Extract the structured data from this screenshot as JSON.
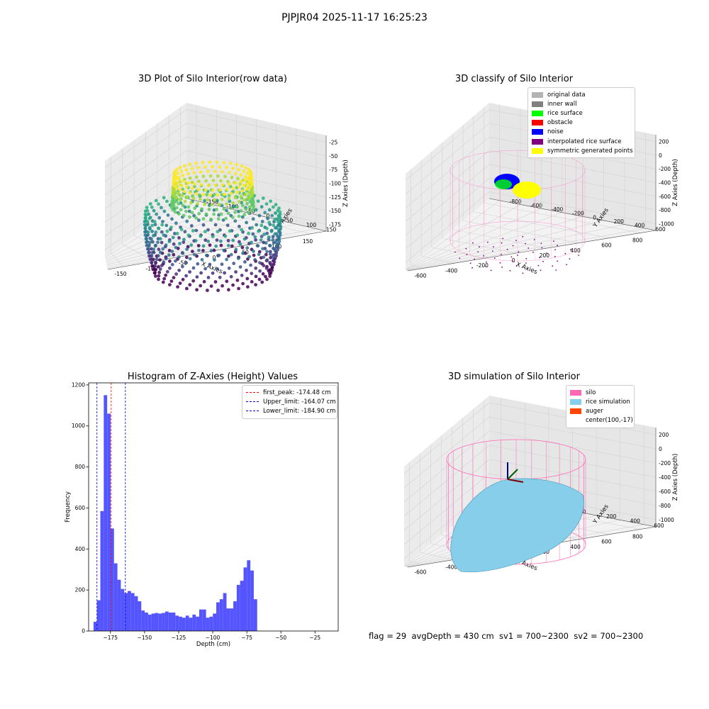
{
  "suptitle": "PJPJR04 2025-11-17 16:25:23",
  "colors": {
    "bars": "#5555ff",
    "first_peak": "#ff0000",
    "limits": "#0000cc",
    "silo": "#ff69b4",
    "rice_simulation": "#87ceeb",
    "auger": "#ff4500"
  },
  "panels": [
    {
      "title": "3D Plot of Silo Interior(row data)",
      "type": "3d-scatter",
      "x_label": "X Axies",
      "y_label": "Y Axies",
      "z_label": "Z Axies (Depth)",
      "x_ticks": [
        "-150",
        "-100",
        "-50",
        "0",
        "50",
        "100",
        "150"
      ],
      "y_ticks": [
        "-150",
        "-100",
        "-50",
        "0",
        "50",
        "100",
        "150"
      ],
      "z_ticks": [
        "-25",
        "-50",
        "-75",
        "-100",
        "-125",
        "-150",
        "-175"
      ],
      "colormap": "viridis"
    },
    {
      "title": "3D classify of Silo Interior",
      "type": "3d-scatter",
      "x_label": "X Axies",
      "y_label": "Y Axies",
      "z_label": "Z Axies (Depth)",
      "x_ticks": [
        "-600",
        "-400",
        "-200",
        "0",
        "200",
        "400",
        "600",
        "800"
      ],
      "y_ticks": [
        "-800",
        "-600",
        "-400",
        "-200",
        "0",
        "200",
        "400",
        "600"
      ],
      "z_ticks": [
        "200",
        "0",
        "-200",
        "-400",
        "-600",
        "-800",
        "-1000"
      ],
      "legend": [
        {
          "label": "original data",
          "color": "#b3b3b3"
        },
        {
          "label": "inner wall",
          "color": "#808080"
        },
        {
          "label": "rice surface",
          "color": "#00ff00"
        },
        {
          "label": "obstacle",
          "color": "#ff0000"
        },
        {
          "label": "noise",
          "color": "#0000ff"
        },
        {
          "label": "interpolated rice surface",
          "color": "#800080"
        },
        {
          "label": "symmetric generated points",
          "color": "#ffff00"
        }
      ]
    },
    {
      "title": "3D simulation of Silo Interior",
      "type": "3d-surface",
      "x_label": "X Axies",
      "y_label": "Y Axies",
      "z_label": "Z Axies (Depth)",
      "x_ticks": [
        "-600",
        "-400",
        "-200",
        "0",
        "200",
        "400",
        "600",
        "800"
      ],
      "y_ticks": [
        "-600",
        "-400",
        "-200",
        "0",
        "200",
        "400",
        "600"
      ],
      "z_ticks": [
        "200",
        "0",
        "-200",
        "-400",
        "-600",
        "-800",
        "-1000"
      ],
      "legend": [
        {
          "label": "silo",
          "color": "#ff69b4"
        },
        {
          "label": "rice simulation",
          "color": "#87ceeb"
        },
        {
          "label": "auger",
          "color": "#ff4500"
        },
        {
          "label": "center(100,-17)",
          "color": "transparent"
        }
      ]
    }
  ],
  "stats_text": "flag = 29  avgDepth = 430 cm  sv1 = 700~2300  sv2 = 700~2300",
  "chart_data": {
    "type": "bar",
    "title": "Histogram of Z-Axies (Height) Values",
    "xlabel": "Depth (cm)",
    "ylabel": "Frequency",
    "xlim": [
      -191,
      -8
    ],
    "ylim": [
      0,
      1210
    ],
    "x_ticks": [
      -175,
      -150,
      -125,
      -100,
      -75,
      -50,
      -25
    ],
    "x_tick_labels": [
      "−175",
      "−150",
      "−125",
      "−100",
      "−75",
      "−50",
      "−25"
    ],
    "y_ticks": [
      0,
      200,
      400,
      600,
      800,
      1000,
      1200
    ],
    "bin_start": -187.4,
    "bin_width": 2.5,
    "values": [
      45,
      150,
      585,
      1150,
      1060,
      500,
      330,
      250,
      205,
      185,
      195,
      185,
      170,
      145,
      100,
      90,
      80,
      85,
      88,
      85,
      88,
      95,
      90,
      90,
      75,
      70,
      65,
      75,
      65,
      80,
      70,
      105,
      105,
      65,
      70,
      85,
      140,
      155,
      185,
      110,
      110,
      145,
      225,
      245,
      310,
      345,
      295,
      155
    ],
    "vlines": [
      {
        "x": -174.48,
        "label": "first_peak: -174.48 cm",
        "color": "#ff0000"
      },
      {
        "x": -164.07,
        "label": "Upper_limit: -164.07 cm",
        "color": "#0000cc"
      },
      {
        "x": -184.9,
        "label": "Lower_limit: -184.90 cm",
        "color": "#0000cc"
      }
    ],
    "legend_position": "top-right"
  }
}
